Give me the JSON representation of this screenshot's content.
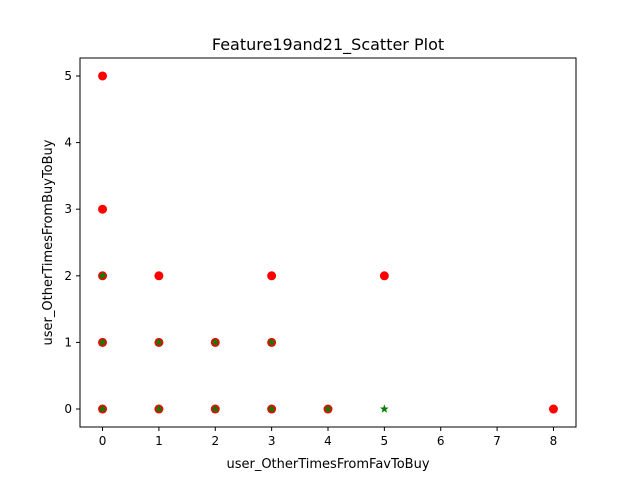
{
  "chart_data": {
    "type": "scatter",
    "title": "Feature19and21_Scatter Plot",
    "xlabel": "user_OtherTimesFromFavToBuy",
    "ylabel": "user_OtherTimesFromBuyToBuy",
    "xlim": [
      -0.4,
      8.4
    ],
    "ylim": [
      -0.27,
      5.27
    ],
    "xticks": [
      "0",
      "1",
      "2",
      "3",
      "4",
      "5",
      "6",
      "7",
      "8"
    ],
    "yticks": [
      "0",
      "1",
      "2",
      "3",
      "4",
      "5"
    ],
    "grid": false,
    "series": [
      {
        "marker": "circle",
        "color": "#ff0000",
        "points": [
          [
            0,
            5
          ],
          [
            0,
            3
          ],
          [
            0,
            2
          ],
          [
            1,
            2
          ],
          [
            3,
            2
          ],
          [
            5,
            2
          ],
          [
            0,
            1
          ],
          [
            1,
            1
          ],
          [
            2,
            1
          ],
          [
            3,
            1
          ],
          [
            0,
            0
          ],
          [
            1,
            0
          ],
          [
            2,
            0
          ],
          [
            3,
            0
          ],
          [
            4,
            0
          ],
          [
            8,
            0
          ]
        ]
      },
      {
        "marker": "star",
        "color": "#008000",
        "points": [
          [
            0,
            2
          ],
          [
            0,
            1
          ],
          [
            1,
            1
          ],
          [
            2,
            1
          ],
          [
            3,
            1
          ],
          [
            0,
            0
          ],
          [
            1,
            0
          ],
          [
            2,
            0
          ],
          [
            3,
            0
          ],
          [
            4,
            0
          ],
          [
            5,
            0
          ]
        ]
      }
    ]
  }
}
